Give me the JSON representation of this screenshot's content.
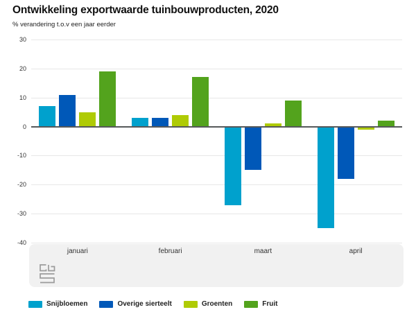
{
  "title": "Ontwikkeling exportwaarde tuinbouwproducten, 2020",
  "subtitle": "% verandering t.o.v een jaar eerder",
  "logo": {
    "name": "cbs-logo"
  },
  "colors": {
    "grid": "#e7e7e7",
    "zero_line": "#55585a",
    "axis_band": "#f1f1f1",
    "title_text": "#111111",
    "tick_text": "#333333",
    "logo_gray": "#9b9b9b"
  },
  "chart_data": {
    "type": "bar",
    "categories": [
      "januari",
      "februari",
      "maart",
      "april"
    ],
    "series": [
      {
        "name": "Snijbloemen",
        "color": "#00a1cd",
        "values": [
          7,
          3,
          -27,
          -35
        ]
      },
      {
        "name": "Overige sierteelt",
        "color": "#0058b8",
        "values": [
          11,
          3,
          -15,
          -18
        ]
      },
      {
        "name": "Groenten",
        "color": "#afcb05",
        "values": [
          5,
          4,
          1,
          -1
        ]
      },
      {
        "name": "Fruit",
        "color": "#53a31d",
        "values": [
          19,
          17,
          9,
          2
        ]
      }
    ],
    "ylim": [
      -40,
      30
    ],
    "yticks": [
      30,
      20,
      10,
      0,
      -10,
      -20,
      -30,
      -40
    ],
    "grid": true,
    "legend_position": "bottom"
  }
}
